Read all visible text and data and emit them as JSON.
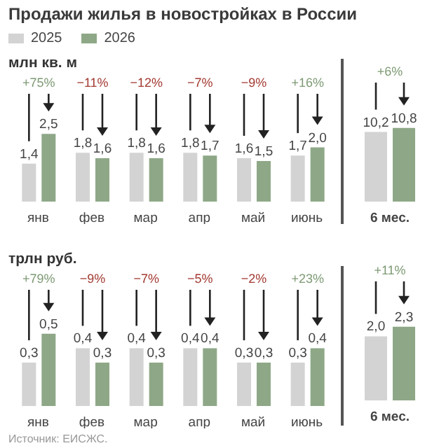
{
  "chart_data": [
    {
      "type": "bar",
      "title": "Продажи жилья в новостройках в России",
      "ylabel": "млн кв. м",
      "legend": "top left",
      "categories": [
        "янв",
        "фев",
        "мар",
        "апр",
        "май",
        "июнь"
      ],
      "series": [
        {
          "name": "2025",
          "color": "#d3d3d3",
          "values": [
            1.4,
            1.8,
            1.8,
            1.8,
            1.6,
            1.7
          ],
          "value_labels": [
            "1,4",
            "1,8",
            "1,8",
            "1,8",
            "1,6",
            "1,7"
          ]
        },
        {
          "name": "2026",
          "color": "#8ea887",
          "values": [
            2.5,
            1.6,
            1.6,
            1.7,
            1.5,
            2.0
          ],
          "value_labels": [
            "2,5",
            "1,6",
            "1,6",
            "1,7",
            "1,5",
            "2,0"
          ]
        }
      ],
      "annotations": [
        "+75%",
        "−11%",
        "−12%",
        "−7%",
        "−9%",
        "+16%"
      ]
    },
    {
      "type": "bar",
      "categories": [
        "6 мес."
      ],
      "series": [
        {
          "color": "#d3d3d3",
          "values": [
            10.2
          ],
          "value_labels": [
            "10,2"
          ]
        },
        {
          "color": "#8ea887",
          "values": [
            10.8
          ],
          "value_labels": [
            "10,8"
          ]
        }
      ],
      "annotations": [
        "+6%"
      ]
    },
    {
      "type": "bar",
      "ylabel": "трлн руб.",
      "categories": [
        "янв",
        "фев",
        "мар",
        "апр",
        "май",
        "июнь"
      ],
      "series": [
        {
          "color": "#d3d3d3",
          "values": [
            0.3,
            0.4,
            0.4,
            0.4,
            0.3,
            0.3
          ],
          "value_labels": [
            "0,3",
            "0,4",
            "0,4",
            "0,4",
            "0,3",
            "0,3"
          ]
        },
        {
          "color": "#8ea887",
          "values": [
            0.5,
            0.3,
            0.3,
            0.4,
            0.3,
            0.4
          ],
          "value_labels": [
            "0,5",
            "0,3",
            "0,3",
            "0,4",
            "0,3",
            "0,4"
          ]
        }
      ],
      "annotations": [
        "+79%",
        "−9%",
        "−7%",
        "−5%",
        "−2%",
        "+23%",
        "Источник: ЕИСЖС."
      ]
    },
    {
      "type": "bar",
      "categories": [
        "6 мес."
      ],
      "series": [
        {
          "color": "#d3d3d3",
          "values": [
            2.0
          ],
          "value_labels": [
            "2,0"
          ]
        },
        {
          "color": "#8ea887",
          "values": [
            2.3
          ],
          "value_labels": [
            "2,3"
          ]
        }
      ],
      "annotations": [
        "+11%"
      ]
    }
  ]
}
